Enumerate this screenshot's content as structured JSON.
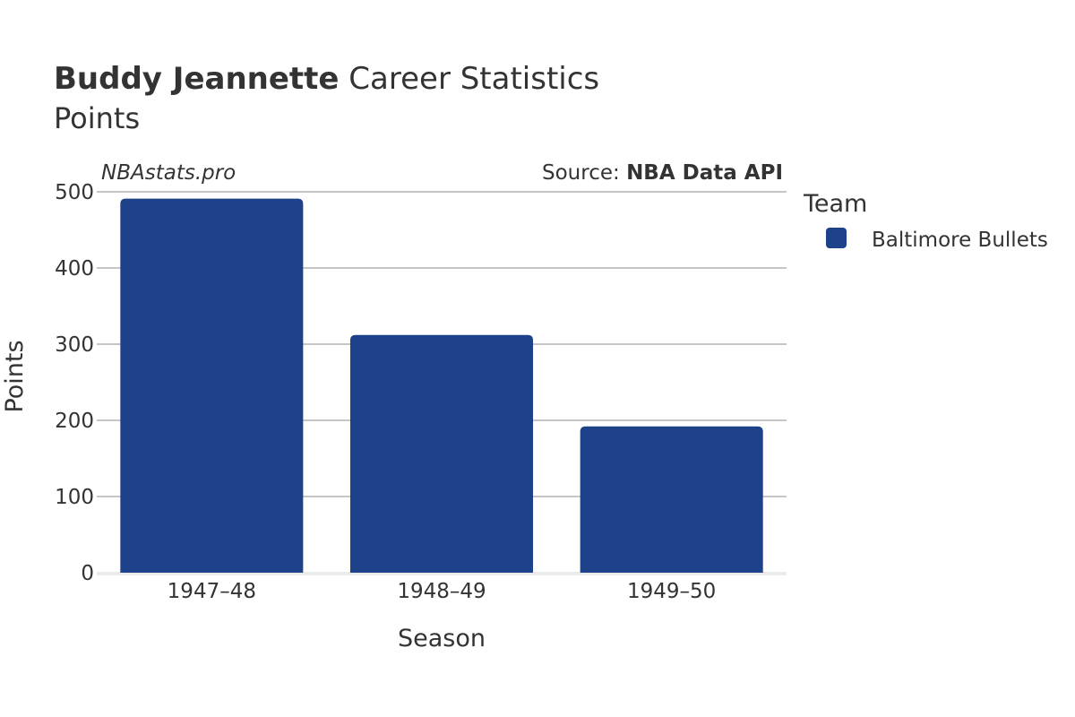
{
  "header": {
    "player": "Buddy Jeannette",
    "title_suffix": "Career Statistics",
    "subtitle": "Points"
  },
  "watermark": "NBAstats.pro",
  "source": {
    "prefix": "Source: ",
    "name": "NBA Data API"
  },
  "legend": {
    "title": "Team",
    "items": [
      {
        "label": "Baltimore Bullets",
        "color": "#1d4289"
      }
    ]
  },
  "chart_data": {
    "type": "bar",
    "categories": [
      "1947–48",
      "1948–49",
      "1949–50"
    ],
    "series": [
      {
        "name": "Baltimore Bullets",
        "values": [
          491,
          312,
          192
        ],
        "color": "#1d4289"
      }
    ],
    "xlabel": "Season",
    "ylabel": "Points",
    "ylim": [
      0,
      500
    ],
    "yticks": [
      0,
      100,
      200,
      300,
      400,
      500
    ],
    "grid": true,
    "legend_position": "right"
  }
}
